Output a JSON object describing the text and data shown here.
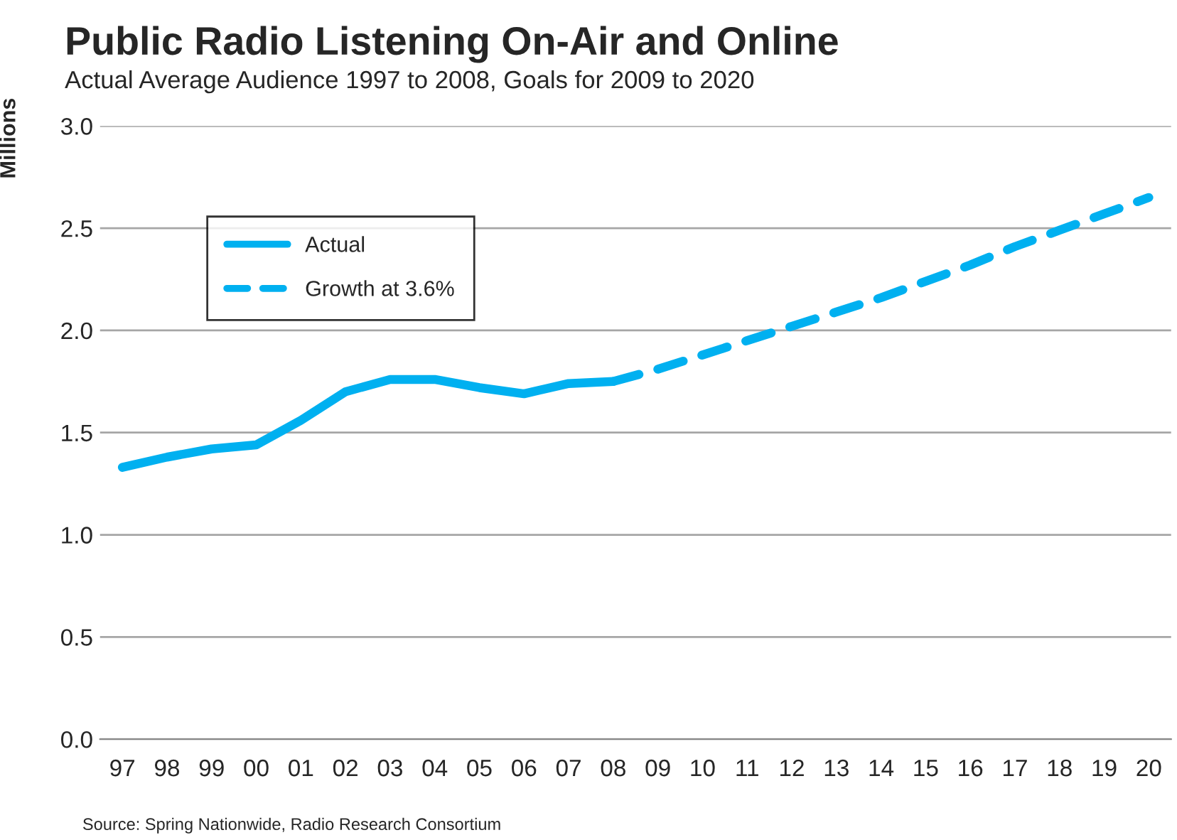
{
  "chart_data": {
    "type": "line",
    "title": "Public Radio Listening On-Air and Online",
    "subtitle": "Actual Average Audience 1997 to 2008, Goals for 2009 to 2020",
    "ylabel": "Millions",
    "categories": [
      "97",
      "98",
      "99",
      "00",
      "01",
      "02",
      "03",
      "04",
      "05",
      "06",
      "07",
      "08",
      "09",
      "10",
      "11",
      "12",
      "13",
      "14",
      "15",
      "16",
      "17",
      "18",
      "19",
      "20"
    ],
    "series": [
      {
        "name": "Actual",
        "color": "#00b0f0",
        "line_style": "solid",
        "values": [
          1.33,
          1.38,
          1.42,
          1.44,
          1.56,
          1.7,
          1.76,
          1.76,
          1.72,
          1.69,
          1.74,
          1.75,
          null,
          null,
          null,
          null,
          null,
          null,
          null,
          null,
          null,
          null,
          null,
          null
        ]
      },
      {
        "name": "Growth at 3.6%",
        "color": "#00b0f0",
        "line_style": "dashed",
        "values": [
          null,
          null,
          null,
          null,
          null,
          null,
          null,
          null,
          null,
          null,
          null,
          1.75,
          1.81,
          1.88,
          1.95,
          2.02,
          2.09,
          2.16,
          2.24,
          2.32,
          2.41,
          2.49,
          2.57,
          2.65
        ]
      }
    ],
    "ylim": [
      0,
      3.0
    ],
    "yticks": [
      {
        "value": 0,
        "label": "0.0"
      },
      {
        "value": 0.5,
        "label": "0.5"
      },
      {
        "value": 1.0,
        "label": "1.0"
      },
      {
        "value": 1.5,
        "label": "1.5"
      },
      {
        "value": 2.0,
        "label": "2.0"
      },
      {
        "value": 2.5,
        "label": "2.5"
      },
      {
        "value": 3.0,
        "label": "3.0"
      }
    ],
    "grid": "y",
    "legend": "top left",
    "marker": "none",
    "annotations": [
      "Source: Spring Nationwide, Radio Research Consortium"
    ]
  }
}
